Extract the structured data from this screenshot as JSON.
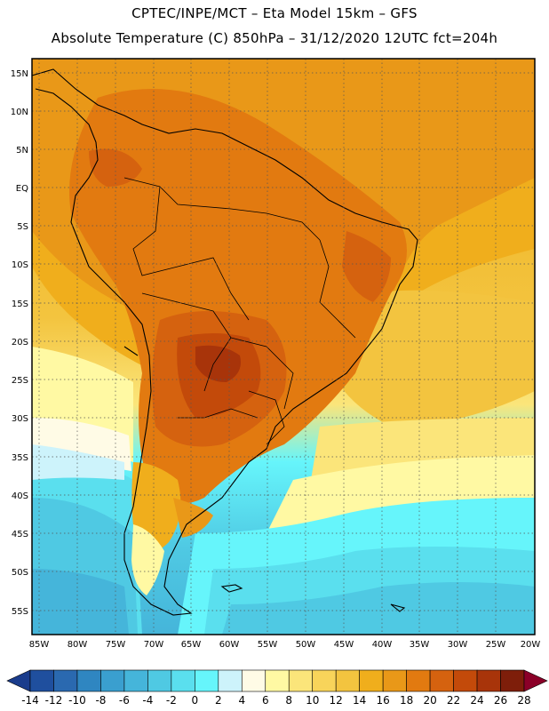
{
  "header": {
    "line1": "CPTEC/INPE/MCT –  Eta Model 15km – GFS",
    "line2": "Absolute Temperature (C) 850hPa – 31/12/2020 12UTC fct=204h"
  },
  "map": {
    "lat_labels": [
      "15N",
      "10N",
      "5N",
      "EQ",
      "5S",
      "10S",
      "15S",
      "20S",
      "25S",
      "30S",
      "35S",
      "40S",
      "45S",
      "50S",
      "55S"
    ],
    "lon_labels": [
      "85W",
      "80W",
      "75W",
      "70W",
      "65W",
      "60W",
      "55W",
      "50W",
      "45W",
      "40W",
      "35W",
      "30W",
      "25W",
      "20W"
    ]
  },
  "colorbar": {
    "labels": [
      "-14",
      "-12",
      "-10",
      "-8",
      "-6",
      "-4",
      "-2",
      "0",
      "2",
      "4",
      "6",
      "8",
      "10",
      "12",
      "14",
      "16",
      "18",
      "20",
      "22",
      "24",
      "26",
      "28"
    ],
    "colors": [
      "#1a3c8c",
      "#1f4f9e",
      "#2a69b0",
      "#2f86c1",
      "#3a9fcf",
      "#45b5da",
      "#4fc9e3",
      "#5adfee",
      "#66f5fb",
      "#cdf3fb",
      "#fffbe6",
      "#fff9a3",
      "#fbe57a",
      "#f8d45a",
      "#f3c43f",
      "#f0ae1c",
      "#e99818",
      "#e27a10",
      "#d5620f",
      "#c34a0a",
      "#a8340a",
      "#7e1e0a",
      "#8b0028"
    ]
  }
}
